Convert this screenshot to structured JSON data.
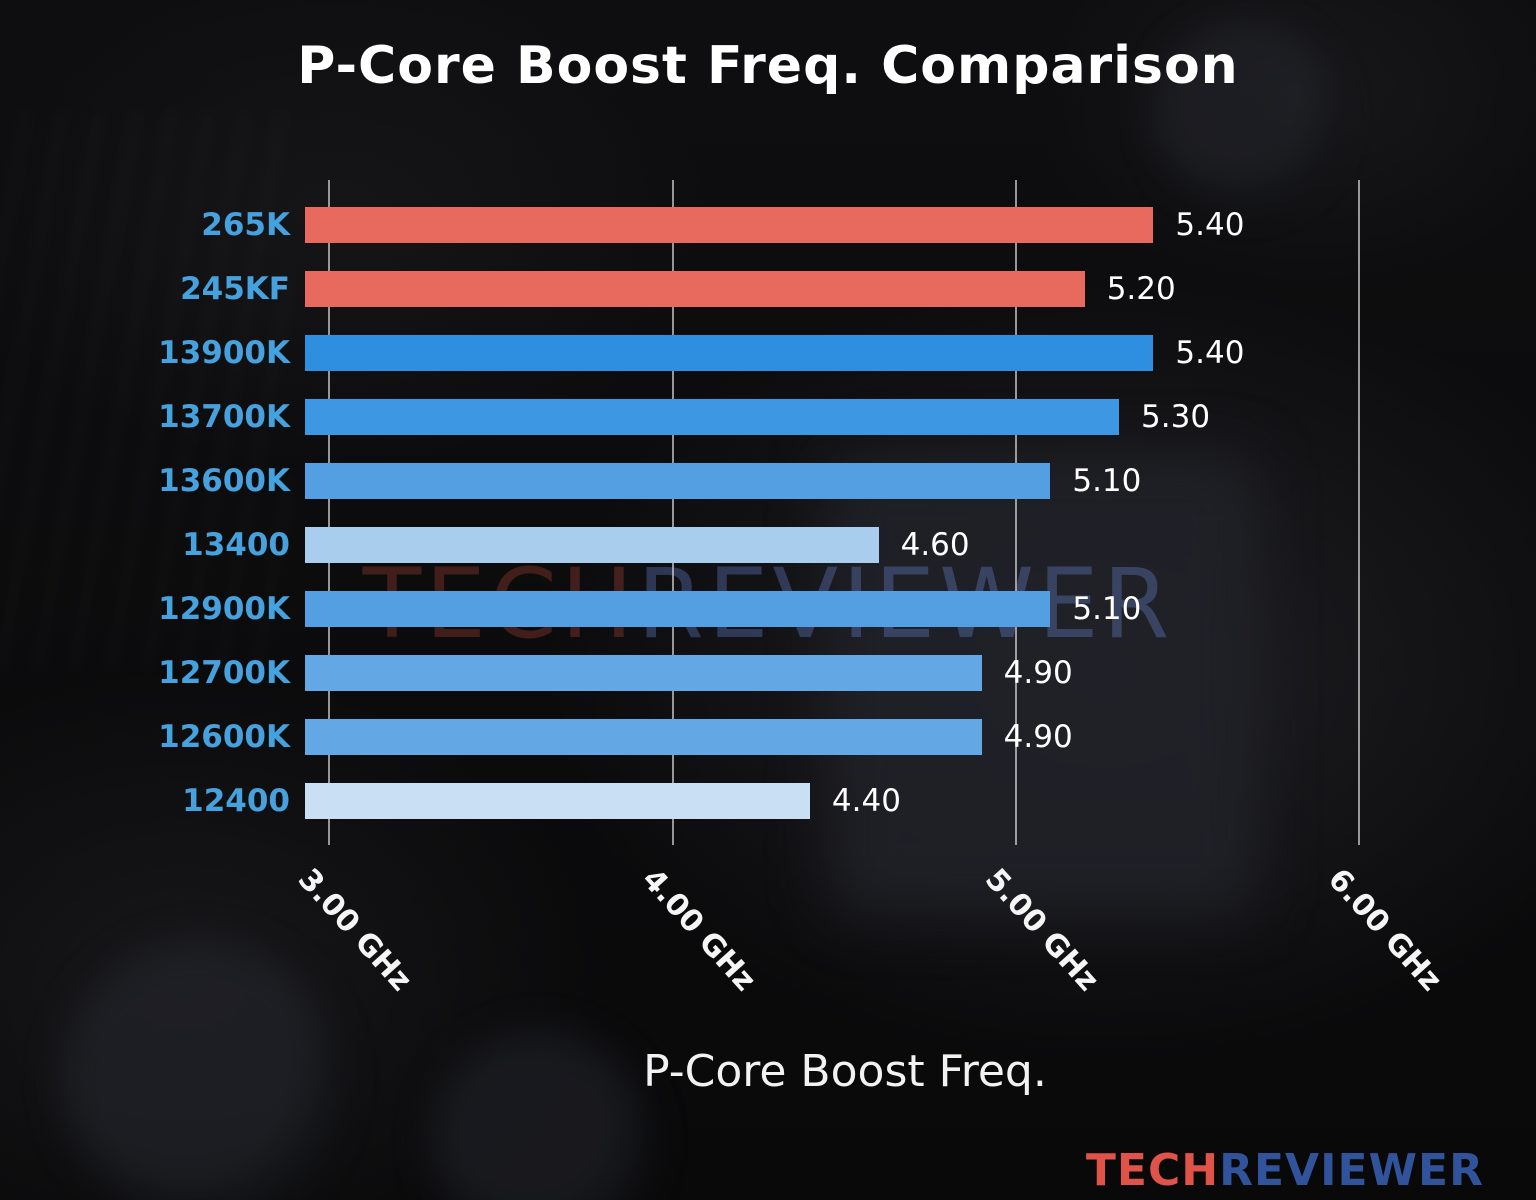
{
  "chart_data": {
    "type": "bar",
    "orientation": "horizontal",
    "title": "P-Core Boost Freq. Comparison",
    "xlabel": "P-Core Boost Freq.",
    "categories": [
      "265K",
      "245KF",
      "13900K",
      "13700K",
      "13600K",
      "13400",
      "12900K",
      "12700K",
      "12600K",
      "12400"
    ],
    "values": [
      5.4,
      5.2,
      5.4,
      5.3,
      5.1,
      4.6,
      5.1,
      4.9,
      4.9,
      4.4
    ],
    "value_labels": [
      "5.40",
      "5.20",
      "5.40",
      "5.30",
      "5.10",
      "4.60",
      "5.10",
      "4.90",
      "4.90",
      "4.40"
    ],
    "bar_colors": [
      "#e86a5e",
      "#e86a5e",
      "#2e8fe0",
      "#3d97e2",
      "#539fe2",
      "#a9cdec",
      "#539fe2",
      "#63a8e4",
      "#63a8e4",
      "#c9dff4"
    ],
    "category_label_color": "#46a2de",
    "value_label_color": "#ffffff",
    "xlim": [
      2.93,
      6.38
    ],
    "xticks": [
      {
        "value": 3,
        "label": "3.00 GHz"
      },
      {
        "value": 4,
        "label": "4.00 GHz"
      },
      {
        "value": 5,
        "label": "5.00 GHz"
      },
      {
        "value": 6,
        "label": "6.00 GHz"
      }
    ],
    "grid": true,
    "gridline_color": "#cdcdcd",
    "unit": "GHz"
  },
  "watermark": {
    "part1": "TECH",
    "part2": "REVIEWER",
    "part1_color": "rgba(185,70,60,0.32)",
    "part2_color": "rgba(105,135,215,0.34)"
  },
  "brand": {
    "part1": "TECH",
    "part2": "REVIEWER",
    "part1_color": "#df5348",
    "part2_color": "#30539b"
  }
}
